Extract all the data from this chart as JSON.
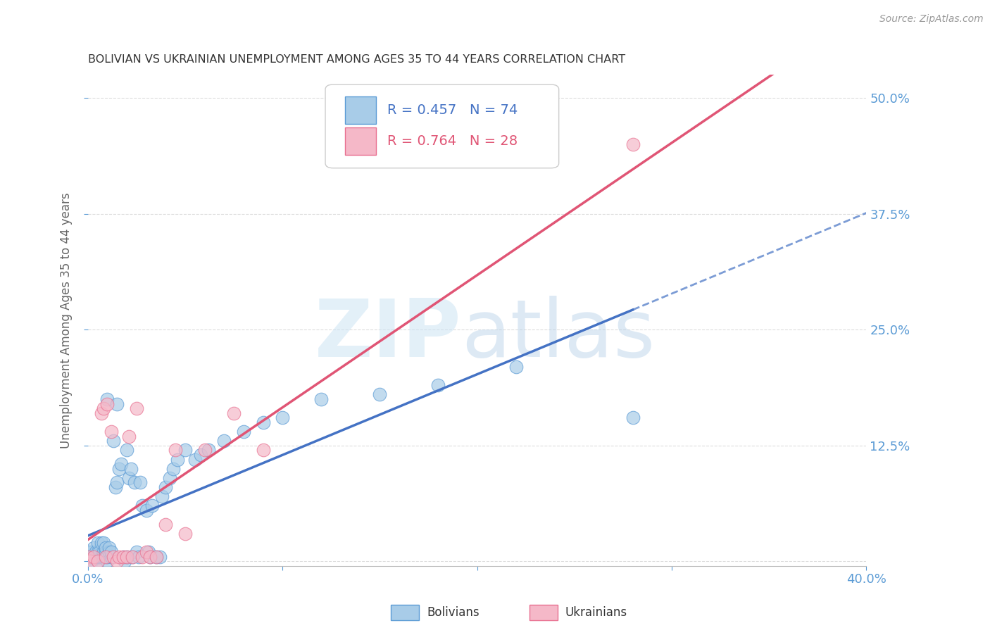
{
  "title": "BOLIVIAN VS UKRAINIAN UNEMPLOYMENT AMONG AGES 35 TO 44 YEARS CORRELATION CHART",
  "source": "Source: ZipAtlas.com",
  "ylabel": "Unemployment Among Ages 35 to 44 years",
  "xlim": [
    0.0,
    0.4
  ],
  "ylim": [
    -0.005,
    0.525
  ],
  "yticks": [
    0.0,
    0.125,
    0.25,
    0.375,
    0.5
  ],
  "ytick_labels": [
    "",
    "12.5%",
    "25.0%",
    "37.5%",
    "50.0%"
  ],
  "xticks": [
    0.0,
    0.1,
    0.2,
    0.3,
    0.4
  ],
  "xtick_labels": [
    "0.0%",
    "",
    "",
    "",
    "40.0%"
  ],
  "bolivians_R": 0.457,
  "bolivians_N": 74,
  "ukrainians_R": 0.764,
  "ukrainians_N": 28,
  "bolivian_scatter_color": "#a8cce8",
  "bolivian_edge_color": "#5b9bd5",
  "ukrainian_scatter_color": "#f5b8c8",
  "ukrainian_edge_color": "#e87090",
  "bolivian_line_color": "#4472c4",
  "ukrainian_line_color": "#e05575",
  "axis_tick_color": "#5b9bd5",
  "title_color": "#333333",
  "source_color": "#999999",
  "grid_color": "#dddddd",
  "background_color": "#ffffff",
  "bolivians_x": [
    0.0,
    0.0,
    0.0,
    0.001,
    0.001,
    0.002,
    0.002,
    0.002,
    0.003,
    0.003,
    0.004,
    0.004,
    0.005,
    0.005,
    0.005,
    0.005,
    0.006,
    0.006,
    0.007,
    0.007,
    0.008,
    0.008,
    0.008,
    0.009,
    0.009,
    0.01,
    0.01,
    0.01,
    0.011,
    0.011,
    0.012,
    0.012,
    0.013,
    0.014,
    0.015,
    0.015,
    0.016,
    0.017,
    0.018,
    0.019,
    0.02,
    0.02,
    0.021,
    0.022,
    0.023,
    0.024,
    0.025,
    0.026,
    0.027,
    0.028,
    0.03,
    0.031,
    0.032,
    0.033,
    0.035,
    0.037,
    0.038,
    0.04,
    0.042,
    0.044,
    0.046,
    0.05,
    0.055,
    0.058,
    0.062,
    0.07,
    0.08,
    0.09,
    0.1,
    0.12,
    0.15,
    0.18,
    0.22,
    0.28
  ],
  "bolivians_y": [
    0.0,
    0.005,
    0.01,
    0.0,
    0.005,
    0.0,
    0.005,
    0.01,
    0.005,
    0.015,
    0.005,
    0.01,
    0.0,
    0.005,
    0.01,
    0.02,
    0.005,
    0.01,
    0.005,
    0.02,
    0.005,
    0.01,
    0.02,
    0.01,
    0.015,
    0.0,
    0.005,
    0.175,
    0.01,
    0.015,
    0.005,
    0.01,
    0.13,
    0.08,
    0.085,
    0.17,
    0.1,
    0.105,
    0.005,
    0.0,
    0.005,
    0.12,
    0.09,
    0.1,
    0.005,
    0.085,
    0.01,
    0.005,
    0.085,
    0.06,
    0.055,
    0.01,
    0.005,
    0.06,
    0.005,
    0.005,
    0.07,
    0.08,
    0.09,
    0.1,
    0.11,
    0.12,
    0.11,
    0.115,
    0.12,
    0.13,
    0.14,
    0.15,
    0.155,
    0.175,
    0.18,
    0.19,
    0.21,
    0.155
  ],
  "ukrainians_x": [
    0.0,
    0.001,
    0.003,
    0.005,
    0.007,
    0.008,
    0.009,
    0.01,
    0.012,
    0.013,
    0.015,
    0.016,
    0.018,
    0.02,
    0.021,
    0.023,
    0.025,
    0.028,
    0.03,
    0.032,
    0.035,
    0.04,
    0.045,
    0.05,
    0.06,
    0.075,
    0.09,
    0.28
  ],
  "ukrainians_y": [
    0.005,
    0.0,
    0.005,
    0.0,
    0.16,
    0.165,
    0.005,
    0.17,
    0.14,
    0.005,
    0.0,
    0.005,
    0.005,
    0.005,
    0.135,
    0.005,
    0.165,
    0.005,
    0.01,
    0.005,
    0.005,
    0.04,
    0.12,
    0.03,
    0.12,
    0.16,
    0.12,
    0.45
  ]
}
